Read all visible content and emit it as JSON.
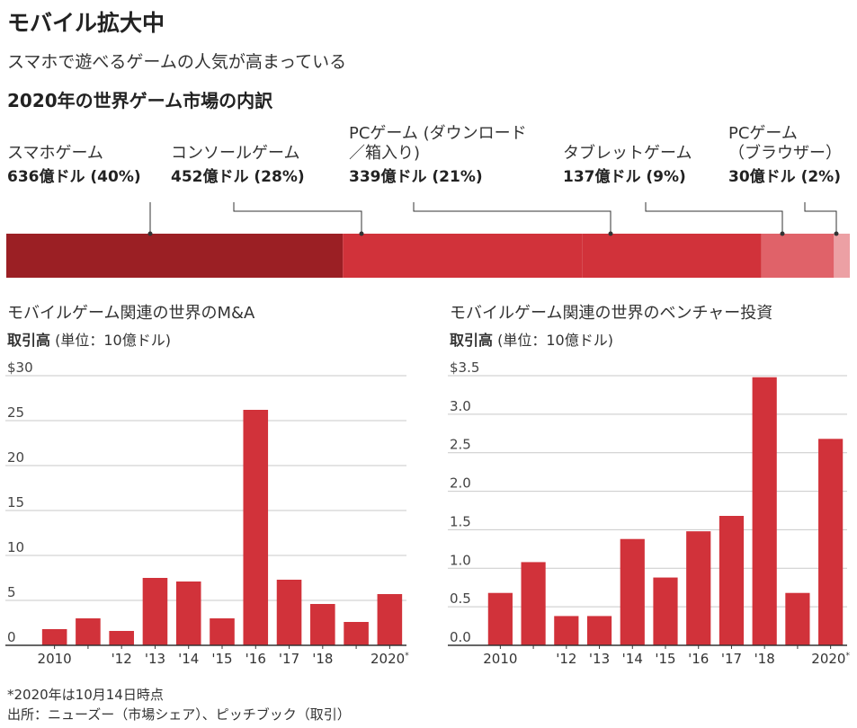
{
  "header": {
    "title": "モバイル拡大中",
    "subtitle": "スマホで遊べるゲームの人気が高まっている"
  },
  "breakdown": {
    "title": "2020年の世界ゲーム市場の内訳",
    "segments": [
      {
        "name": "スマホゲーム",
        "label": "636億ドル (40%)",
        "value": 636,
        "share": 40,
        "color": "#9b1f24"
      },
      {
        "name": "コンソールゲーム",
        "label": "452億ドル (28%)",
        "value": 452,
        "share": 28,
        "color": "#d1323a"
      },
      {
        "name": "PCゲーム (ダウンロード\n／箱入り)",
        "label": "339億ドル (21%)",
        "value": 339,
        "share": 21,
        "color": "#d1323a"
      },
      {
        "name": "タブレットゲーム",
        "label": "137億ドル (9%)",
        "value": 137,
        "share": 9,
        "color": "#e06269"
      },
      {
        "name": "PCゲーム\n（ブラウザー）",
        "label": "30億ドル (2%)",
        "value": 30,
        "share": 2,
        "color": "#eca0a4"
      }
    ]
  },
  "chart_data": [
    {
      "type": "bar",
      "title": "モバイルゲーム関連の世界のM&A",
      "ylabel_bold": "取引高",
      "ylabel_unit": " (単位：10億ドル)",
      "categories": [
        "2010",
        "2011",
        "'12",
        "'13",
        "'14",
        "'15",
        "'16",
        "'17",
        "'18",
        "2019",
        "2020"
      ],
      "tick_labels": [
        "2010",
        "",
        "'12",
        "'13",
        "'14",
        "'15",
        "'16",
        "'17",
        "'18",
        "",
        "2020*"
      ],
      "values": [
        1.8,
        3.0,
        1.6,
        7.5,
        7.1,
        3.0,
        26.2,
        7.3,
        4.6,
        2.6,
        5.7
      ],
      "ylim": [
        0,
        30
      ],
      "yticks": [
        0,
        5,
        10,
        15,
        20,
        25,
        30
      ],
      "ytick_labels": [
        "0",
        "5",
        "10",
        "15",
        "20",
        "25",
        "$30"
      ],
      "grid": true,
      "color": "#d1323a"
    },
    {
      "type": "bar",
      "title": "モバイルゲーム関連の世界のベンチャー投資",
      "ylabel_bold": "取引高",
      "ylabel_unit": " (単位：10億ドル)",
      "categories": [
        "2010",
        "2011",
        "'12",
        "'13",
        "'14",
        "'15",
        "'16",
        "'17",
        "'18",
        "2019",
        "2020"
      ],
      "tick_labels": [
        "2010",
        "",
        "'12",
        "'13",
        "'14",
        "'15",
        "'16",
        "'17",
        "'18",
        "",
        "2020*"
      ],
      "values": [
        0.68,
        1.08,
        0.38,
        0.38,
        1.38,
        0.88,
        1.48,
        1.68,
        3.48,
        0.68,
        2.68
      ],
      "ylim": [
        0,
        3.5
      ],
      "yticks": [
        0,
        0.5,
        1.0,
        1.5,
        2.0,
        2.5,
        3.0,
        3.5
      ],
      "ytick_labels": [
        "0.0",
        "0.5",
        "1.0",
        "1.5",
        "2.0",
        "2.5",
        "3.0",
        "$3.5"
      ],
      "grid": true,
      "color": "#d1323a"
    }
  ],
  "footnotes": {
    "note": "*2020年は10月14日時点",
    "source": "出所：ニューズー（市場シェア）、ピッチブック（取引）"
  }
}
